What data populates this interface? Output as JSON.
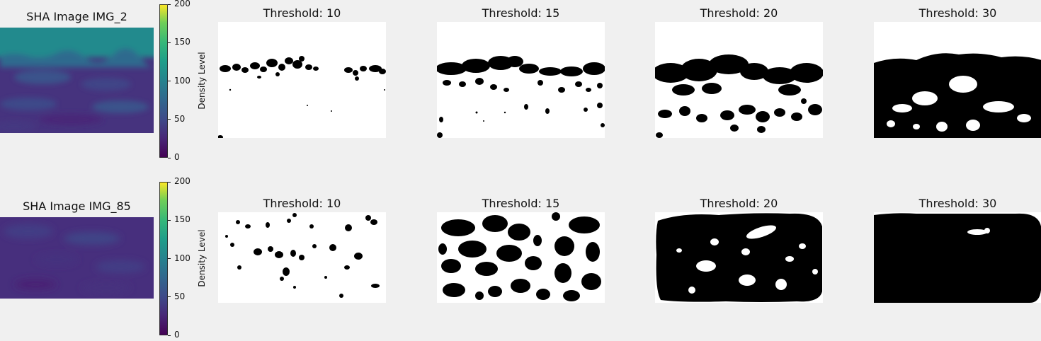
{
  "chart_data": [
    {
      "type": "heatmap",
      "title": "SHA Image IMG_2",
      "colorbar": {
        "label": "Density Level",
        "ticks": [
          0,
          50,
          100,
          150,
          200
        ],
        "range": [
          0,
          200
        ],
        "colormap": "viridis"
      },
      "thresholds": [
        {
          "title": "Threshold: 10",
          "value": 10
        },
        {
          "title": "Threshold: 15",
          "value": 15
        },
        {
          "title": "Threshold: 20",
          "value": 20
        },
        {
          "title": "Threshold: 30",
          "value": 30
        }
      ]
    },
    {
      "type": "heatmap",
      "title": "SHA Image IMG_85",
      "colorbar": {
        "label": "Density Level",
        "ticks": [
          0,
          50,
          100,
          150,
          200
        ],
        "range": [
          0,
          200
        ],
        "colormap": "viridis"
      },
      "thresholds": [
        {
          "title": "Threshold: 10",
          "value": 10
        },
        {
          "title": "Threshold: 15",
          "value": 15
        },
        {
          "title": "Threshold: 20",
          "value": 20
        },
        {
          "title": "Threshold: 30",
          "value": 30
        }
      ]
    }
  ],
  "colors": {
    "background": "#f0f0f0",
    "teal_band": "#238a8d",
    "purple_base": "#46337e",
    "mask_fg": "#000000",
    "mask_bg": "#ffffff"
  }
}
